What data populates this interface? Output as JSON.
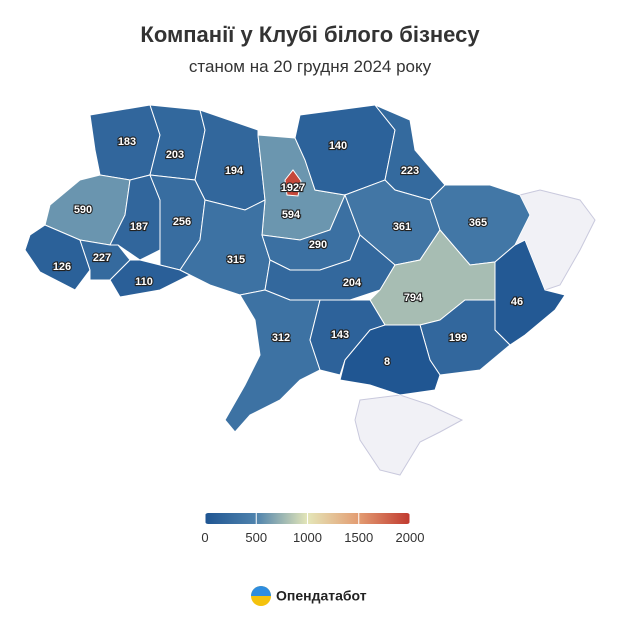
{
  "chart_data": {
    "type": "choropleth",
    "title": "Компанії у Клубі білого бізнесу",
    "subtitle": "станом на 20 грудня 2024 року",
    "values": [
      183,
      203,
      194,
      1927,
      594,
      140,
      223,
      590,
      187,
      256,
      126,
      227,
      110,
      315,
      290,
      361,
      365,
      204,
      794,
      46,
      312,
      143,
      199,
      8
    ],
    "clim": [
      0,
      2000
    ],
    "cticks": [
      0,
      500,
      1000,
      1500,
      2000
    ],
    "colors": [
      "#1f5592",
      "#4f83ad",
      "#e4e6b8",
      "#e39c72",
      "#c0392f"
    ],
    "source": "Опендатабот"
  }
}
